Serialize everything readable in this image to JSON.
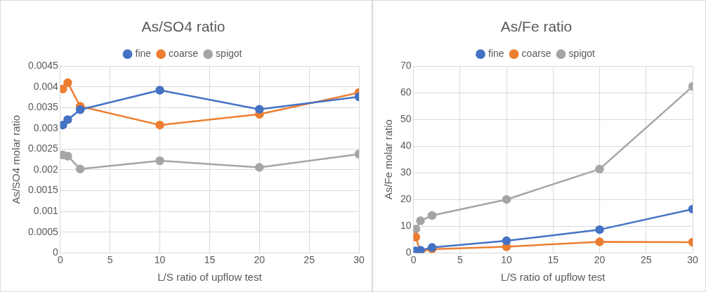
{
  "chart_data": [
    {
      "type": "line",
      "title": "As/SO4 ratio",
      "xlabel": "L/S ratio of upflow test",
      "ylabel": "As/SO4 molar ratio",
      "x": [
        0.25,
        0.75,
        2,
        10,
        20,
        30
      ],
      "series": [
        {
          "name": "fine",
          "color": "#4472c4",
          "values": [
            0.00308,
            0.00321,
            0.00345,
            0.00392,
            0.00346,
            0.00376
          ]
        },
        {
          "name": "coarse",
          "color": "#ed7d31",
          "values": [
            0.00395,
            0.0041,
            0.00353,
            0.00308,
            0.00334,
            0.00386
          ]
        },
        {
          "name": "spigot",
          "color": "#a5a5a5",
          "values": [
            0.00236,
            0.00233,
            0.00202,
            0.00222,
            0.00206,
            0.00238
          ]
        }
      ],
      "xlim": [
        0,
        30
      ],
      "xticks": [
        0,
        5,
        10,
        15,
        20,
        25,
        30
      ],
      "ylim": [
        0,
        0.0045
      ],
      "yticks": [
        0,
        0.0005,
        0.001,
        0.0015,
        0.002,
        0.0025,
        0.003,
        0.0035,
        0.004,
        0.0045
      ],
      "grid": true,
      "legend": "top",
      "marker": "circle"
    },
    {
      "type": "line",
      "title": "As/Fe ratio",
      "xlabel": "L/S ratio of upflow test",
      "ylabel": "As/Fe molar ratio",
      "x": [
        0.25,
        0.75,
        2,
        10,
        20,
        30
      ],
      "series": [
        {
          "name": "fine",
          "color": "#4472c4",
          "values": [
            0.7,
            1,
            2,
            4.5,
            8.7,
            16.4
          ]
        },
        {
          "name": "coarse",
          "color": "#ed7d31",
          "values": [
            5.9,
            0.4,
            1.4,
            2.3,
            4.1,
            4
          ]
        },
        {
          "name": "spigot",
          "color": "#a5a5a5",
          "values": [
            8.9,
            12,
            14,
            20,
            31.4,
            62.4
          ]
        }
      ],
      "xlim": [
        0,
        30
      ],
      "xticks": [
        0,
        5,
        10,
        15,
        20,
        25,
        30
      ],
      "ylim": [
        0,
        70
      ],
      "yticks": [
        0,
        10,
        20,
        30,
        40,
        50,
        60,
        70
      ],
      "grid": true,
      "legend": "top",
      "marker": "circle"
    }
  ]
}
